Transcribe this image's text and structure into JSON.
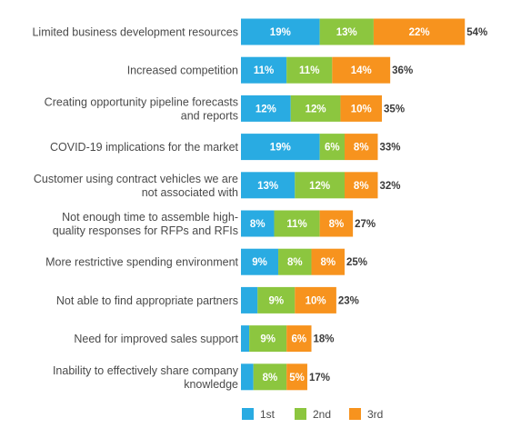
{
  "chart_data": {
    "type": "bar",
    "orientation": "horizontal",
    "stacked": true,
    "title": "",
    "xlabel": "",
    "ylabel": "",
    "categories": [
      "Limited business development resources",
      "Increased competition",
      "Creating opportunity pipeline forecasts and reports",
      "COVID-19 implications for the market",
      "Customer using contract vehicles we are not associated with",
      "Not enough time to assemble high-quality responses for RFPs and RFIs",
      "More restrictive spending environment",
      "Not able to find appropriate partners",
      "Need for improved sales support",
      "Inability to effectively share company knowledge"
    ],
    "category_lines": [
      [
        "Limited business development resources"
      ],
      [
        "Increased competition"
      ],
      [
        "Creating opportunity pipeline forecasts",
        "and reports"
      ],
      [
        "COVID-19 implications for the market"
      ],
      [
        "Customer using contract vehicles we are",
        "not associated with"
      ],
      [
        "Not enough time to assemble high-",
        "quality responses for RFPs and RFIs"
      ],
      [
        "More restrictive spending environment"
      ],
      [
        "Not able to find appropriate partners"
      ],
      [
        "Need for improved sales support"
      ],
      [
        "Inability to effectively share company",
        "knowledge"
      ]
    ],
    "series": [
      {
        "name": "1st",
        "color": "#29abe2",
        "values": [
          19,
          11,
          12,
          19,
          13,
          8,
          9,
          4,
          2,
          3
        ]
      },
      {
        "name": "2nd",
        "color": "#8cc63f",
        "values": [
          13,
          11,
          12,
          6,
          12,
          11,
          8,
          9,
          9,
          8
        ]
      },
      {
        "name": "3rd",
        "color": "#f7931e",
        "values": [
          22,
          14,
          10,
          8,
          8,
          8,
          8,
          10,
          6,
          5
        ]
      }
    ],
    "segment_labels": [
      [
        "19%",
        "13%",
        "22%"
      ],
      [
        "11%",
        "11%",
        "14%"
      ],
      [
        "12%",
        "12%",
        "10%"
      ],
      [
        "19%",
        "6%",
        "8%"
      ],
      [
        "13%",
        "12%",
        "8%"
      ],
      [
        "8%",
        "11%",
        "8%"
      ],
      [
        "9%",
        "8%",
        "8%"
      ],
      [
        "",
        "9%",
        "10%"
      ],
      [
        "",
        "9%",
        "6%"
      ],
      [
        "",
        "8%",
        "5%"
      ]
    ],
    "totals": [
      "54%",
      "36%",
      "35%",
      "33%",
      "32%",
      "27%",
      "25%",
      "23%",
      "18%",
      "17%"
    ],
    "legend": {
      "position": "bottom",
      "entries": [
        "1st",
        "2nd",
        "3rd"
      ]
    }
  }
}
